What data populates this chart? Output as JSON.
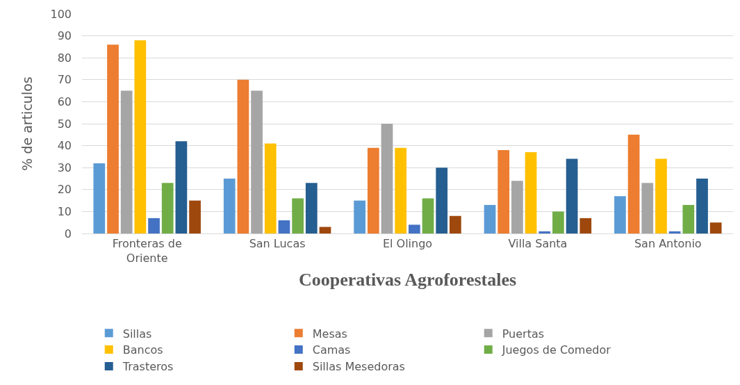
{
  "chart_data": {
    "type": "bar",
    "xlabel": "Cooperativas Agroforestales",
    "ylabel": "% de articulos",
    "categories": [
      "Fronteras de Oriente",
      "San Lucas",
      "El Olingo",
      "Villa Santa",
      "San Antonio"
    ],
    "series": [
      {
        "name": "Sillas",
        "color": "#5b9bd5",
        "values": [
          32,
          25,
          15,
          13,
          17
        ]
      },
      {
        "name": "Mesas",
        "color": "#ed7d31",
        "values": [
          86,
          70,
          39,
          38,
          45
        ]
      },
      {
        "name": "Puertas",
        "color": "#a5a5a5",
        "values": [
          65,
          65,
          50,
          24,
          23
        ]
      },
      {
        "name": "Bancos",
        "color": "#ffc000",
        "values": [
          88,
          41,
          39,
          37,
          34
        ]
      },
      {
        "name": "Camas",
        "color": "#4472c4",
        "values": [
          7,
          6,
          4,
          1,
          1
        ]
      },
      {
        "name": "Juegos de Comedor",
        "color": "#70ad47",
        "values": [
          23,
          16,
          16,
          10,
          13
        ]
      },
      {
        "name": "Trasteros",
        "color": "#255e91",
        "values": [
          42,
          23,
          30,
          34,
          25
        ]
      },
      {
        "name": "Sillas Mesedoras",
        "color": "#9e480e",
        "values": [
          15,
          3,
          8,
          7,
          5
        ]
      }
    ],
    "ylim": [
      0,
      100
    ],
    "yticks": [
      0,
      10,
      20,
      30,
      40,
      50,
      60,
      70,
      80,
      90,
      100
    ],
    "grid": "y",
    "legend": "bottom"
  }
}
